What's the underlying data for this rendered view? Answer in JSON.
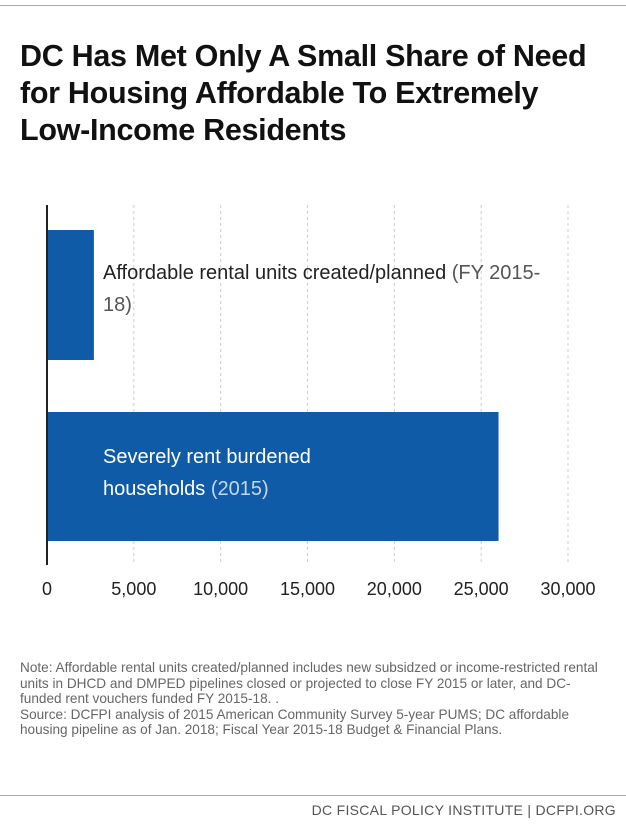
{
  "chart_data": {
    "type": "hbar",
    "title": "DC Has Met Only A Small Share of Need for Housing Affordable To Extremely Low-Income Residents",
    "categories": [
      "Affordable rental units created/planned",
      "Severely rent burdened households"
    ],
    "category_notes": [
      "(FY 2015-18)",
      "(2015)"
    ],
    "values": [
      2700,
      26000
    ],
    "color": "#0f5ba7",
    "xlim": [
      0,
      30000
    ],
    "xticks": [
      0,
      {
        "value": 5000,
        "label": "5,000"
      },
      {
        "value": 10000,
        "label": "10,000"
      },
      {
        "value": 15000,
        "label": "15,000"
      },
      {
        "value": 20000,
        "label": "20,000"
      },
      {
        "value": 25000,
        "label": "25,000"
      },
      {
        "value": 30000,
        "label": "30,000"
      }
    ],
    "grid": true
  },
  "notes": {
    "note": "Note: Affordable rental units created/planned includes new subsidzed or income-restricted rental units in DHCD and DMPED pipelines closed or projected to close FY 2015 or later, and DC-funded rent vouchers funded FY 2015-18. .",
    "source": "Source: DCFPI analysis of 2015 American Community Survey 5-year PUMS; DC affordable housing pipeline as of Jan. 2018; Fiscal Year 2015-18 Budget & Financial Plans."
  },
  "footer": "DC FISCAL POLICY INSTITUTE | DCFPI.ORG"
}
